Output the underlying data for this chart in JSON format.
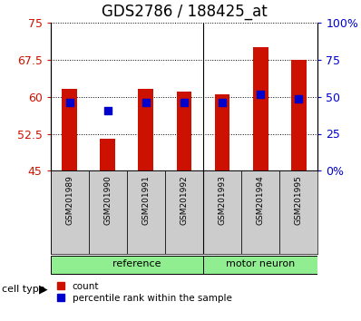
{
  "title": "GDS2786 / 188425_at",
  "samples": [
    "GSM201989",
    "GSM201990",
    "GSM201991",
    "GSM201992",
    "GSM201993",
    "GSM201994",
    "GSM201995"
  ],
  "counts": [
    61.5,
    51.5,
    61.5,
    61.0,
    60.5,
    70.0,
    67.5
  ],
  "percentile_ranks": [
    58.8,
    57.2,
    58.8,
    58.8,
    58.8,
    60.5,
    59.5
  ],
  "groups": [
    "reference",
    "reference",
    "reference",
    "reference",
    "motor neuron",
    "motor neuron",
    "motor neuron"
  ],
  "ylim_left": [
    45,
    75
  ],
  "ylim_right": [
    0,
    100
  ],
  "yticks_left": [
    45,
    52.5,
    60,
    67.5,
    75
  ],
  "ytick_labels_left": [
    "45",
    "52.5",
    "60",
    "67.5",
    "75"
  ],
  "yticks_right": [
    0,
    25,
    50,
    75,
    100
  ],
  "ytick_labels_right": [
    "0%",
    "25",
    "50",
    "75",
    "100%"
  ],
  "bar_color": "#CC1100",
  "dot_color": "#0000CC",
  "grid_color": "#000000",
  "bg_color": "#FFFFFF",
  "left_tick_color": "#CC1100",
  "right_tick_color": "#0000CC",
  "title_fontsize": 12,
  "tick_fontsize": 9,
  "bar_width": 0.4,
  "dot_size": 28,
  "base_value": 45,
  "ref_group_color": "#90EE90",
  "mn_group_color": "#90EE90",
  "xtick_bg_color": "#CCCCCC"
}
